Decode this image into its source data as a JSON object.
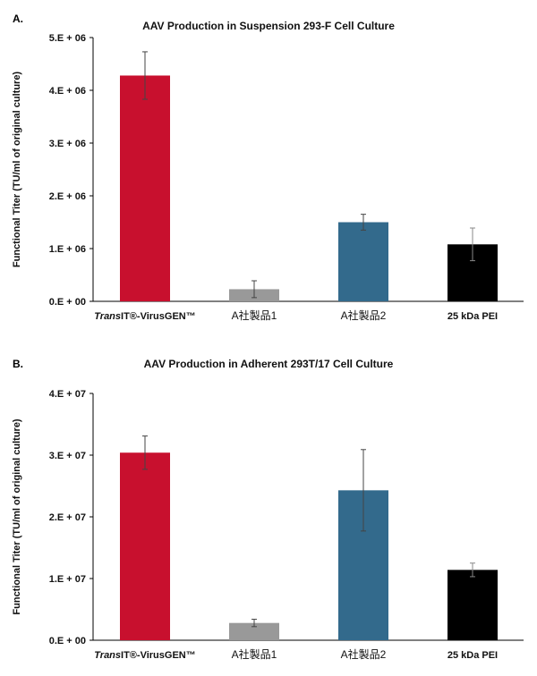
{
  "colors": {
    "transit": "#c8102e",
    "companyA1": "#999999",
    "companyA2": "#336a8c",
    "pei": "#000000"
  },
  "chart_data": [
    {
      "panel": "A.",
      "type": "bar",
      "title": "AAV Production in Suspension 293-F Cell Culture",
      "ylabel": "Functional Titer (TU/ml of original culture)",
      "categories": [
        "TransIT®-VirusGEN™",
        "A社製品1",
        "A社製品2",
        "25 kDa PEI"
      ],
      "values": [
        4280000,
        230000,
        1500000,
        1080000
      ],
      "errors": [
        450000,
        160000,
        150000,
        310000
      ],
      "ylim": [
        0,
        5000000
      ],
      "yticks": [
        0,
        1000000,
        2000000,
        3000000,
        4000000,
        5000000
      ],
      "ytick_labels": [
        "0.E + 00",
        "1.E + 06",
        "2.E + 06",
        "3.E + 06",
        "4.E + 06",
        "5.E + 06"
      ],
      "grid": false,
      "legend": "none"
    },
    {
      "panel": "B.",
      "type": "bar",
      "title": "AAV Production in Adherent 293T/17 Cell Culture",
      "ylabel": "Functional Titer (TU/ml of original culture)",
      "categories": [
        "TransIT®-VirusGEN™",
        "A社製品1",
        "A社製品2",
        "25 kDa PEI"
      ],
      "values": [
        30400000,
        2800000,
        24300000,
        11400000
      ],
      "errors": [
        2700000,
        600000,
        6600000,
        1100000
      ],
      "ylim": [
        0,
        40000000
      ],
      "yticks": [
        0,
        10000000,
        20000000,
        30000000,
        40000000
      ],
      "ytick_labels": [
        "0.E + 00",
        "1.E + 07",
        "2.E + 07",
        "3.E + 07",
        "4.E + 07"
      ],
      "grid": false,
      "legend": "none"
    }
  ]
}
